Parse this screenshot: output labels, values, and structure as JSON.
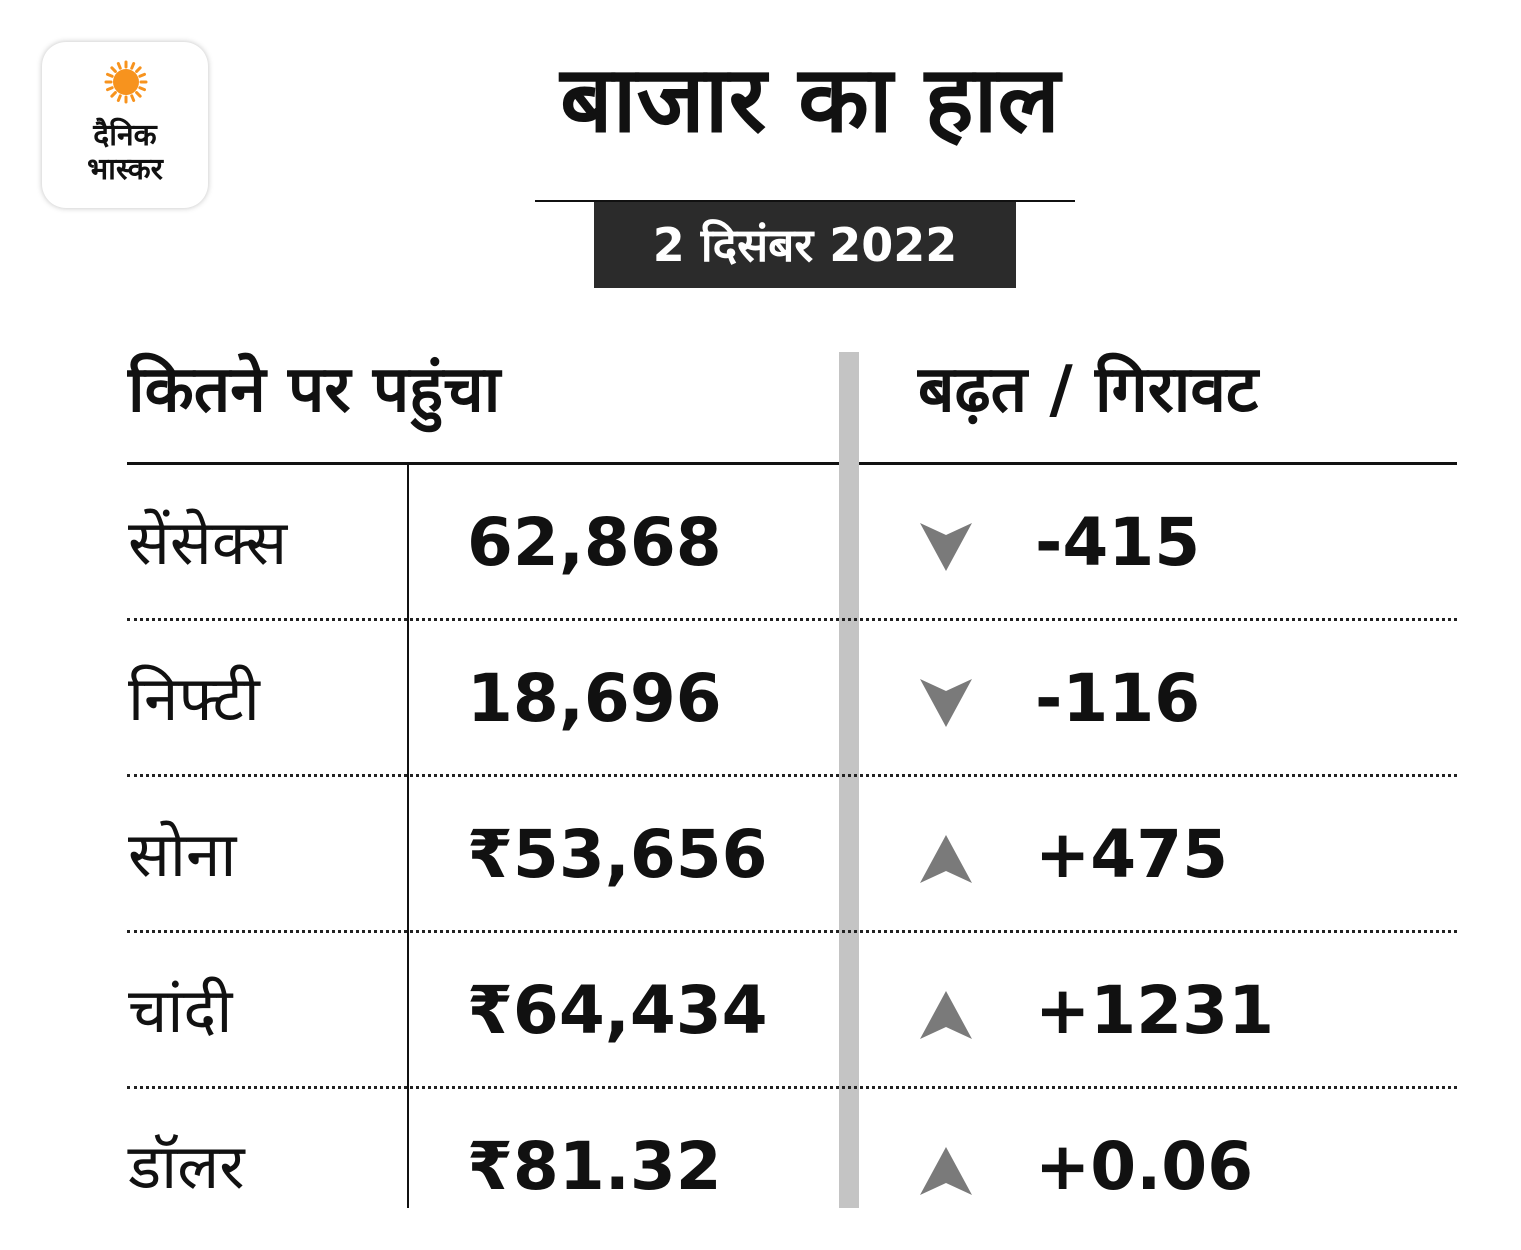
{
  "logo": {
    "line1": "दैनिक",
    "line2": "भास्कर",
    "sun_color": "#f7931e"
  },
  "title": "बाजार का हाल",
  "date": "2 दिसंबर 2022",
  "headers": {
    "level": "कितने पर पहुंचा",
    "change": "बढ़त / गिरावट"
  },
  "arrow_color": "#7a7a7a",
  "rows": [
    {
      "name": "सेंसेक्स",
      "value": "62,868",
      "direction": "down",
      "change": "-415"
    },
    {
      "name": "निफ्टी",
      "value": "18,696",
      "direction": "down",
      "change": "-116"
    },
    {
      "name": "सोना",
      "value": "₹53,656",
      "direction": "up",
      "change": "+475"
    },
    {
      "name": "चांदी",
      "value": "₹64,434",
      "direction": "up",
      "change": "+1231"
    },
    {
      "name": "डॉलर",
      "value": "₹81.32",
      "direction": "up",
      "change": "+0.06"
    }
  ]
}
